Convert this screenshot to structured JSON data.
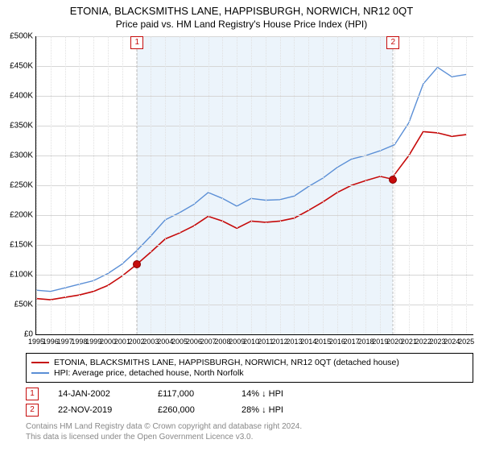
{
  "title": "ETONIA, BLACKSMITHS LANE, HAPPISBURGH, NORWICH, NR12 0QT",
  "subtitle": "Price paid vs. HM Land Registry's House Price Index (HPI)",
  "chart": {
    "type": "line",
    "background_color": "#ffffff",
    "grid_color": "#d6d6d6",
    "band_color": "#eaf3fb",
    "x_range": [
      1995,
      2025.5
    ],
    "x_ticks": [
      1995,
      1996,
      1997,
      1998,
      1999,
      2000,
      2001,
      2002,
      2003,
      2004,
      2005,
      2006,
      2007,
      2008,
      2009,
      2010,
      2011,
      2012,
      2013,
      2014,
      2015,
      2016,
      2017,
      2018,
      2019,
      2020,
      2021,
      2022,
      2023,
      2024,
      2025
    ],
    "y_range": [
      0,
      500000
    ],
    "y_ticks": [
      0,
      50000,
      100000,
      150000,
      200000,
      250000,
      300000,
      350000,
      400000,
      450000,
      500000
    ],
    "y_tick_labels": [
      "£0",
      "£50K",
      "£100K",
      "£150K",
      "£200K",
      "£250K",
      "£300K",
      "£350K",
      "£400K",
      "£450K",
      "£500K"
    ],
    "band_start": 2002.04,
    "band_end": 2019.9,
    "series": [
      {
        "name": "property",
        "label": "ETONIA, BLACKSMITHS LANE, HAPPISBURGH, NORWICH, NR12 0QT (detached house)",
        "color": "#c60b0b",
        "line_width": 1.6,
        "points": [
          [
            1995,
            60000
          ],
          [
            1996,
            58000
          ],
          [
            1997,
            62000
          ],
          [
            1998,
            66000
          ],
          [
            1999,
            72000
          ],
          [
            2000,
            82000
          ],
          [
            2001,
            98000
          ],
          [
            2002,
            117000
          ],
          [
            2003,
            138000
          ],
          [
            2004,
            160000
          ],
          [
            2005,
            170000
          ],
          [
            2006,
            182000
          ],
          [
            2007,
            198000
          ],
          [
            2008,
            190000
          ],
          [
            2009,
            178000
          ],
          [
            2010,
            190000
          ],
          [
            2011,
            188000
          ],
          [
            2012,
            190000
          ],
          [
            2013,
            195000
          ],
          [
            2014,
            208000
          ],
          [
            2015,
            222000
          ],
          [
            2016,
            238000
          ],
          [
            2017,
            250000
          ],
          [
            2018,
            258000
          ],
          [
            2019,
            265000
          ],
          [
            2019.9,
            260000
          ],
          [
            2020,
            268000
          ],
          [
            2021,
            300000
          ],
          [
            2022,
            340000
          ],
          [
            2023,
            338000
          ],
          [
            2024,
            332000
          ],
          [
            2025,
            335000
          ]
        ]
      },
      {
        "name": "hpi",
        "label": "HPI: Average price, detached house, North Norfolk",
        "color": "#5b8fd6",
        "line_width": 1.4,
        "points": [
          [
            1995,
            74000
          ],
          [
            1996,
            72000
          ],
          [
            1997,
            78000
          ],
          [
            1998,
            84000
          ],
          [
            1999,
            90000
          ],
          [
            2000,
            102000
          ],
          [
            2001,
            118000
          ],
          [
            2002,
            140000
          ],
          [
            2003,
            165000
          ],
          [
            2004,
            192000
          ],
          [
            2005,
            204000
          ],
          [
            2006,
            218000
          ],
          [
            2007,
            238000
          ],
          [
            2008,
            228000
          ],
          [
            2009,
            215000
          ],
          [
            2010,
            228000
          ],
          [
            2011,
            225000
          ],
          [
            2012,
            226000
          ],
          [
            2013,
            232000
          ],
          [
            2014,
            248000
          ],
          [
            2015,
            262000
          ],
          [
            2016,
            280000
          ],
          [
            2017,
            294000
          ],
          [
            2018,
            300000
          ],
          [
            2019,
            308000
          ],
          [
            2020,
            318000
          ],
          [
            2021,
            355000
          ],
          [
            2022,
            420000
          ],
          [
            2023,
            448000
          ],
          [
            2024,
            432000
          ],
          [
            2025,
            436000
          ]
        ]
      }
    ],
    "sales_markers": [
      {
        "id": "1",
        "x": 2002.04,
        "y": 117000
      },
      {
        "id": "2",
        "x": 2019.9,
        "y": 260000
      }
    ]
  },
  "legend": {
    "rows": [
      {
        "color": "#c60b0b",
        "label": "ETONIA, BLACKSMITHS LANE, HAPPISBURGH, NORWICH, NR12 0QT (detached house)"
      },
      {
        "color": "#5b8fd6",
        "label": "HPI: Average price, detached house, North Norfolk"
      }
    ]
  },
  "sales": [
    {
      "id": "1",
      "date": "14-JAN-2002",
      "price": "£117,000",
      "diff": "14% ↓ HPI"
    },
    {
      "id": "2",
      "date": "22-NOV-2019",
      "price": "£260,000",
      "diff": "28% ↓ HPI"
    }
  ],
  "footer_line1": "Contains HM Land Registry data © Crown copyright and database right 2024.",
  "footer_line2": "This data is licensed under the Open Government Licence v3.0."
}
